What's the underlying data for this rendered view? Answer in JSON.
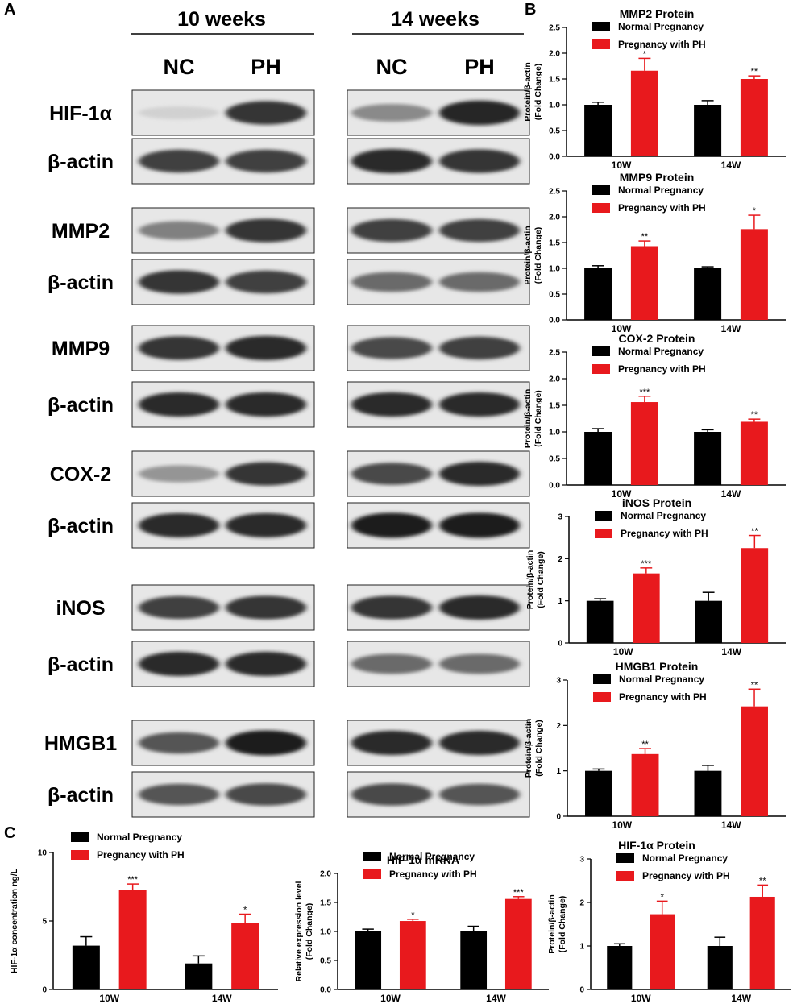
{
  "panel_labels": {
    "a": "A",
    "b": "B",
    "c": "C"
  },
  "western_blot": {
    "timepoints": [
      "10 weeks",
      "14 weeks"
    ],
    "lanes": [
      "NC",
      "PH"
    ],
    "rows": [
      {
        "label": "HIF-1α",
        "bands10": [
          0.12,
          0.85
        ],
        "bands14": [
          0.45,
          0.92
        ]
      },
      {
        "label": "β-actin",
        "bands10": [
          0.8,
          0.8
        ],
        "bands14": [
          0.9,
          0.85
        ]
      },
      {
        "label": "MMP2",
        "bands10": [
          0.5,
          0.85
        ],
        "bands14": [
          0.8,
          0.8
        ]
      },
      {
        "label": "β-actin",
        "bands10": [
          0.85,
          0.8
        ],
        "bands14": [
          0.6,
          0.6
        ]
      },
      {
        "label": "MMP9",
        "bands10": [
          0.85,
          0.9
        ],
        "bands14": [
          0.75,
          0.8
        ]
      },
      {
        "label": "β-actin",
        "bands10": [
          0.9,
          0.9
        ],
        "bands14": [
          0.9,
          0.9
        ]
      },
      {
        "label": "COX-2",
        "bands10": [
          0.4,
          0.85
        ],
        "bands14": [
          0.75,
          0.9
        ]
      },
      {
        "label": "β-actin",
        "bands10": [
          0.9,
          0.9
        ],
        "bands14": [
          0.95,
          0.95
        ]
      },
      {
        "label": "iNOS",
        "bands10": [
          0.8,
          0.85
        ],
        "bands14": [
          0.85,
          0.9
        ]
      },
      {
        "label": "β-actin",
        "bands10": [
          0.9,
          0.9
        ],
        "bands14": [
          0.6,
          0.6
        ]
      },
      {
        "label": "HMGB1",
        "bands10": [
          0.7,
          0.95
        ],
        "bands14": [
          0.9,
          0.9
        ]
      },
      {
        "label": "β-actin",
        "bands10": [
          0.7,
          0.75
        ],
        "bands14": [
          0.75,
          0.7
        ]
      }
    ]
  },
  "legend": {
    "series_a": "Normal Pregnancy",
    "series_b": "Pregnancy with PH"
  },
  "colors": {
    "normal": "#000000",
    "ph": "#e8191d"
  },
  "chart_data": [
    {
      "type": "bar",
      "title": "MMP2 Protein",
      "ylabel": [
        "Protein/β-actin",
        "(Fold Change)"
      ],
      "categories": [
        "10W",
        "14W"
      ],
      "ylim": [
        0,
        2.5
      ],
      "yticks": [
        "0.0",
        "0.5",
        "1.0",
        "1.5",
        "2.0",
        "2.5"
      ],
      "series": [
        {
          "name": "Normal Pregnancy",
          "values": [
            1.0,
            1.0
          ],
          "errors": [
            0.05,
            0.08
          ],
          "sig": [
            "",
            ""
          ]
        },
        {
          "name": "Pregnancy with PH",
          "values": [
            1.66,
            1.5
          ],
          "errors": [
            0.24,
            0.06
          ],
          "sig": [
            "*",
            "**"
          ]
        }
      ]
    },
    {
      "type": "bar",
      "title": "MMP9 Protein",
      "ylabel": [
        "Protein/β-actin",
        "(Fold Change)"
      ],
      "categories": [
        "10W",
        "14W"
      ],
      "ylim": [
        0,
        2.5
      ],
      "yticks": [
        "0.0",
        "0.5",
        "1.0",
        "1.5",
        "2.0",
        "2.5"
      ],
      "series": [
        {
          "name": "Normal Pregnancy",
          "values": [
            1.0,
            1.0
          ],
          "errors": [
            0.05,
            0.03
          ],
          "sig": [
            "",
            ""
          ]
        },
        {
          "name": "Pregnancy with PH",
          "values": [
            1.43,
            1.76
          ],
          "errors": [
            0.1,
            0.27
          ],
          "sig": [
            "**",
            "*"
          ]
        }
      ]
    },
    {
      "type": "bar",
      "title": "COX-2 Protein",
      "ylabel": [
        "Protein/β-actin",
        "(Fold Change)"
      ],
      "categories": [
        "10W",
        "14W"
      ],
      "ylim": [
        0,
        2.5
      ],
      "yticks": [
        "0.0",
        "0.5",
        "1.0",
        "1.5",
        "2.0",
        "2.5"
      ],
      "series": [
        {
          "name": "Normal Pregnancy",
          "values": [
            1.0,
            1.0
          ],
          "errors": [
            0.06,
            0.04
          ],
          "sig": [
            "",
            ""
          ]
        },
        {
          "name": "Pregnancy with PH",
          "values": [
            1.56,
            1.19
          ],
          "errors": [
            0.11,
            0.05
          ],
          "sig": [
            "***",
            "**"
          ]
        }
      ]
    },
    {
      "type": "bar",
      "title": "iNOS Protein",
      "ylabel": [
        "Protein/β-actin",
        "(Fold Change)"
      ],
      "categories": [
        "10W",
        "14W"
      ],
      "ylim": [
        0,
        3
      ],
      "yticks": [
        "0",
        "1",
        "2",
        "3"
      ],
      "series": [
        {
          "name": "Normal Pregnancy",
          "values": [
            1.0,
            1.0
          ],
          "errors": [
            0.05,
            0.2
          ],
          "sig": [
            "",
            ""
          ]
        },
        {
          "name": "Pregnancy with PH",
          "values": [
            1.65,
            2.25
          ],
          "errors": [
            0.13,
            0.3
          ],
          "sig": [
            "***",
            "**"
          ]
        }
      ]
    },
    {
      "type": "bar",
      "title": "HMGB1 Protein",
      "ylabel": [
        "Protein/β-actin",
        "(Fold Change)"
      ],
      "categories": [
        "10W",
        "14W"
      ],
      "ylim": [
        0,
        3
      ],
      "yticks": [
        "0",
        "1",
        "2",
        "3"
      ],
      "series": [
        {
          "name": "Normal Pregnancy",
          "values": [
            1.0,
            1.0
          ],
          "errors": [
            0.04,
            0.12
          ],
          "sig": [
            "",
            ""
          ]
        },
        {
          "name": "Pregnancy with PH",
          "values": [
            1.37,
            2.42
          ],
          "errors": [
            0.12,
            0.38
          ],
          "sig": [
            "**",
            "**"
          ]
        }
      ]
    },
    {
      "type": "bar",
      "title": "",
      "ylabel": [
        "HIF-1α  concentration ng/L"
      ],
      "categories": [
        "10W",
        "14W"
      ],
      "ylim": [
        0,
        10
      ],
      "yticks": [
        "0",
        "5",
        "10"
      ],
      "series": [
        {
          "name": "Normal Pregnancy",
          "values": [
            3.2,
            1.9
          ],
          "errors": [
            0.65,
            0.55
          ],
          "sig": [
            "",
            ""
          ]
        },
        {
          "name": "Pregnancy with PH",
          "values": [
            7.25,
            4.85
          ],
          "errors": [
            0.45,
            0.65
          ],
          "sig": [
            "***",
            "*"
          ]
        }
      ]
    },
    {
      "type": "bar",
      "title": "HIF-1α mRNA",
      "ylabel": [
        "Relative expression  level",
        "(Fold Change)"
      ],
      "categories": [
        "10W",
        "14W"
      ],
      "ylim": [
        0,
        2.0
      ],
      "yticks": [
        "0.0",
        "0.5",
        "1.0",
        "1.5",
        "2.0"
      ],
      "series": [
        {
          "name": "Normal Pregnancy",
          "values": [
            1.0,
            1.0
          ],
          "errors": [
            0.04,
            0.09
          ],
          "sig": [
            "",
            ""
          ]
        },
        {
          "name": "Pregnancy with PH",
          "values": [
            1.18,
            1.56
          ],
          "errors": [
            0.03,
            0.04
          ],
          "sig": [
            "*",
            "***"
          ]
        }
      ]
    },
    {
      "type": "bar",
      "title": "HIF-1α Protein",
      "ylabel": [
        "Protein/β-actin",
        "(Fold Change)"
      ],
      "categories": [
        "10W",
        "14W"
      ],
      "ylim": [
        0,
        3
      ],
      "yticks": [
        "0",
        "1",
        "2",
        "3"
      ],
      "series": [
        {
          "name": "Normal Pregnancy",
          "values": [
            1.0,
            1.0
          ],
          "errors": [
            0.05,
            0.2
          ],
          "sig": [
            "",
            ""
          ]
        },
        {
          "name": "Pregnancy with PH",
          "values": [
            1.73,
            2.13
          ],
          "errors": [
            0.3,
            0.27
          ],
          "sig": [
            "*",
            "**"
          ]
        }
      ]
    }
  ]
}
